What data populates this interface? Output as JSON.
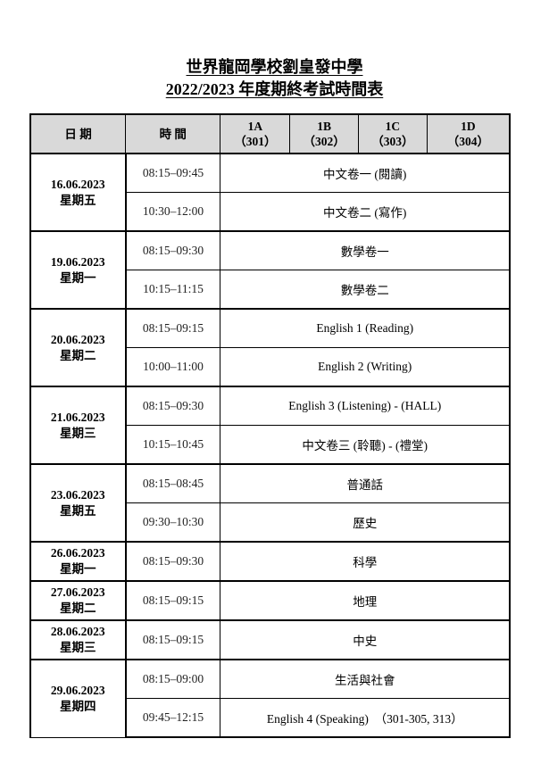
{
  "title": {
    "line1": "世界龍岡學校劉皇發中學",
    "line2": "2022/2023 年度期終考試時間表"
  },
  "header": {
    "date": "日 期",
    "time": "時 間",
    "classes": [
      {
        "name": "1A",
        "room": "（301）"
      },
      {
        "name": "1B",
        "room": "（302）"
      },
      {
        "name": "1C",
        "room": "（303）"
      },
      {
        "name": "1D",
        "room": "（304）"
      }
    ]
  },
  "days": [
    {
      "date": "16.06.2023",
      "weekday": "星期五",
      "slots": [
        {
          "time": "08:15–09:45",
          "subject": "中文卷一 (閱讀)"
        },
        {
          "time": "10:30–12:00",
          "subject": "中文卷二 (寫作)"
        }
      ]
    },
    {
      "date": "19.06.2023",
      "weekday": "星期一",
      "slots": [
        {
          "time": "08:15–09:30",
          "subject": "數學卷一"
        },
        {
          "time": "10:15–11:15",
          "subject": "數學卷二"
        }
      ]
    },
    {
      "date": "20.06.2023",
      "weekday": "星期二",
      "slots": [
        {
          "time": "08:15–09:15",
          "subject": "English 1 (Reading)"
        },
        {
          "time": "10:00–11:00",
          "subject": "English 2 (Writing)"
        }
      ]
    },
    {
      "date": "21.06.2023",
      "weekday": "星期三",
      "slots": [
        {
          "time": "08:15–09:30",
          "subject": "English 3 (Listening) - (HALL)"
        },
        {
          "time": "10:15–10:45",
          "subject": "中文卷三 (聆聽) - (禮堂)"
        }
      ]
    },
    {
      "date": "23.06.2023",
      "weekday": "星期五",
      "slots": [
        {
          "time": "08:15–08:45",
          "subject": "普通話"
        },
        {
          "time": "09:30–10:30",
          "subject": "歷史"
        }
      ]
    },
    {
      "date": "26.06.2023",
      "weekday": "星期一",
      "slots": [
        {
          "time": "08:15–09:30",
          "subject": "科學"
        }
      ]
    },
    {
      "date": "27.06.2023",
      "weekday": "星期二",
      "slots": [
        {
          "time": "08:15–09:15",
          "subject": "地理"
        }
      ]
    },
    {
      "date": "28.06.2023",
      "weekday": "星期三",
      "slots": [
        {
          "time": "08:15–09:15",
          "subject": "中史"
        }
      ]
    },
    {
      "date": "29.06.2023",
      "weekday": "星期四",
      "slots": [
        {
          "time": "08:15–09:00",
          "subject": "生活與社會"
        },
        {
          "time": "09:45–12:15",
          "subject": "English 4 (Speaking)  （301-305, 313）"
        }
      ]
    }
  ]
}
